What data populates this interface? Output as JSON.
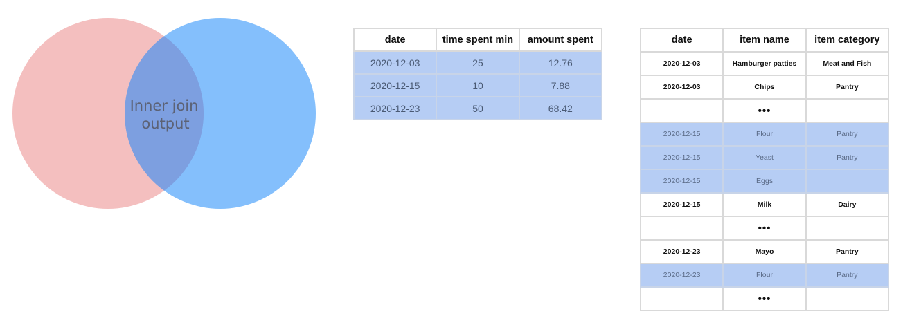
{
  "venn": {
    "label_line1": "Inner join",
    "label_line2": "output",
    "colors": {
      "left": "#efa4a4",
      "right": "#5ba9fb",
      "overlap": "#7d9fe0",
      "label": "#5c6275"
    }
  },
  "time_table": {
    "headers": [
      "date",
      "time spent min",
      "amount spent"
    ],
    "rows": [
      [
        "2020-12-03",
        "25",
        "12.76"
      ],
      [
        "2020-12-15",
        "10",
        "7.88"
      ],
      [
        "2020-12-23",
        "50",
        "68.42"
      ]
    ],
    "highlight_color": "#b6cdf4"
  },
  "items_table": {
    "headers": [
      "date",
      "item name",
      "item category"
    ],
    "rows": [
      {
        "cells": [
          "2020-12-03",
          "Hamburger patties",
          "Meat and Fish"
        ],
        "highlight": false
      },
      {
        "cells": [
          "2020-12-03",
          "Chips",
          "Pantry"
        ],
        "highlight": false
      },
      {
        "cells": [
          "",
          "•••",
          ""
        ],
        "highlight": false,
        "ellipsis": true
      },
      {
        "cells": [
          "2020-12-15",
          "Flour",
          "Pantry"
        ],
        "highlight": true
      },
      {
        "cells": [
          "2020-12-15",
          "Yeast",
          "Pantry"
        ],
        "highlight": true
      },
      {
        "cells": [
          "2020-12-15",
          "Eggs",
          ""
        ],
        "highlight": true
      },
      {
        "cells": [
          "2020-12-15",
          "Milk",
          "Dairy"
        ],
        "highlight": false
      },
      {
        "cells": [
          "",
          "•••",
          ""
        ],
        "highlight": false,
        "ellipsis": true
      },
      {
        "cells": [
          "2020-12-23",
          "Mayo",
          "Pantry"
        ],
        "highlight": false
      },
      {
        "cells": [
          "2020-12-23",
          "Flour",
          "Pantry"
        ],
        "highlight": true
      },
      {
        "cells": [
          "",
          "•••",
          ""
        ],
        "highlight": false,
        "ellipsis": true
      }
    ]
  }
}
